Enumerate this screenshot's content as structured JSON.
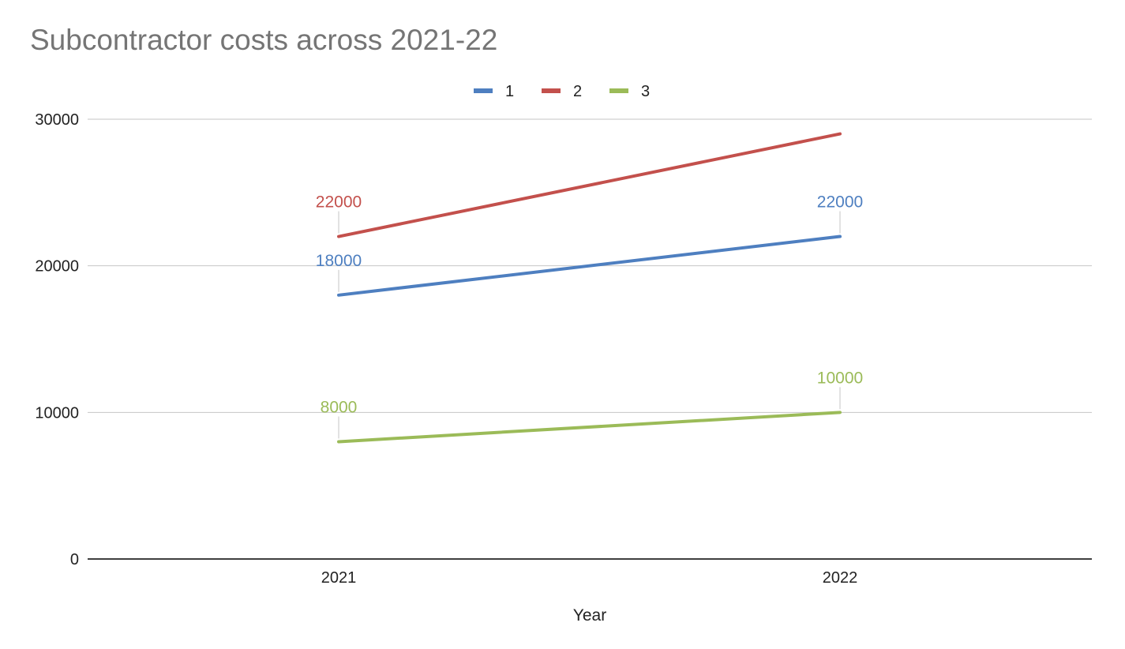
{
  "chart_data": {
    "type": "line",
    "title": "Subcontractor costs across 2021-22",
    "xlabel": "Year",
    "ylabel": "",
    "categories": [
      "2021",
      "2022"
    ],
    "ylim": [
      0,
      30000
    ],
    "yticks": [
      0,
      10000,
      20000,
      30000
    ],
    "grid": true,
    "legend": "top-center",
    "series": [
      {
        "name": "1",
        "values": [
          18000,
          22000
        ],
        "color": "#4e7fc0",
        "labels": [
          "18000",
          "22000"
        ]
      },
      {
        "name": "2",
        "values": [
          22000,
          29000
        ],
        "color": "#c3504c",
        "labels": [
          "22000",
          null
        ]
      },
      {
        "name": "3",
        "values": [
          8000,
          10000
        ],
        "color": "#9bbb58",
        "labels": [
          "8000",
          "10000"
        ]
      }
    ],
    "colors": {
      "grid": "#c6c6c6",
      "axis": "#000000",
      "title": "#757575",
      "tick_text": "#222222",
      "leader": "#d9d9d9"
    }
  }
}
